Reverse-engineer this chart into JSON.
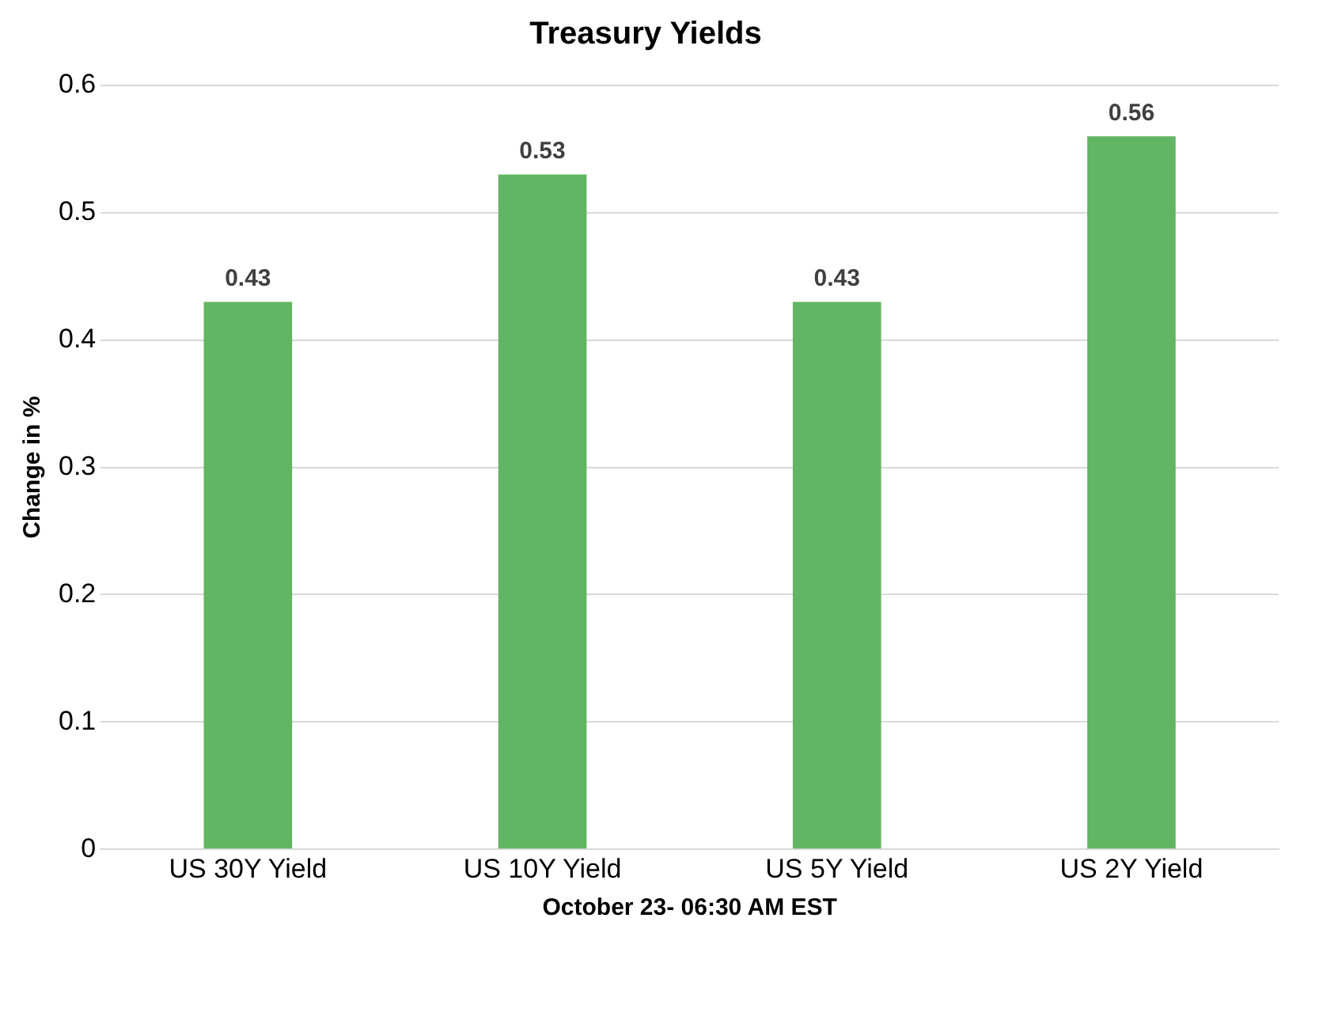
{
  "chart_data": {
    "type": "bar",
    "title": "Treasury Yields",
    "xlabel": "October 23- 06:30 AM EST",
    "ylabel": "Change in %",
    "categories": [
      "US 30Y Yield",
      "US 10Y Yield",
      "US 5Y Yield",
      "US 2Y Yield"
    ],
    "values": [
      0.43,
      0.53,
      0.43,
      0.56
    ],
    "color": "#62b562",
    "ylim": [
      0,
      0.6
    ],
    "yticks": [
      0,
      0.1,
      0.2,
      0.3,
      0.4,
      0.5,
      0.6
    ],
    "grid": "y",
    "data_labels": true,
    "legend": false
  }
}
